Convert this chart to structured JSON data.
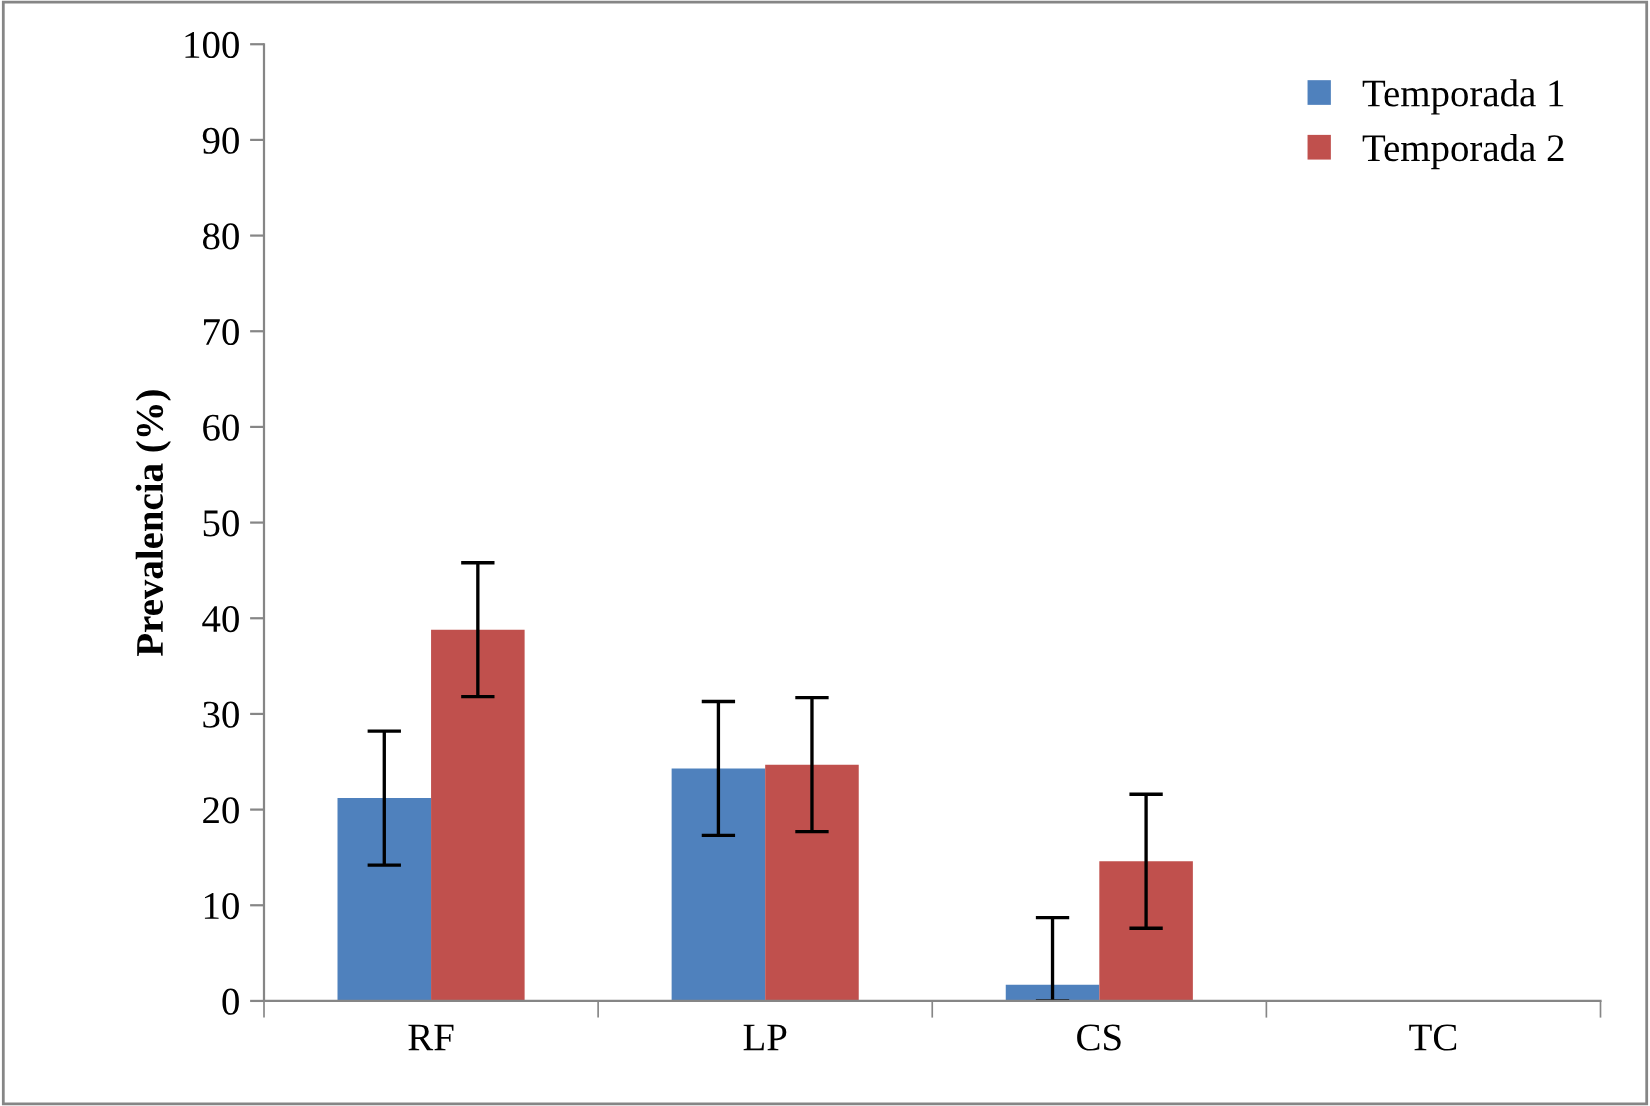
{
  "chart_data": {
    "type": "bar",
    "ylabel": "Prevalencia (%)",
    "categories": [
      "RF",
      "LP",
      "CS",
      "TC"
    ],
    "series": [
      {
        "name": "Temporada 1",
        "color": "#4f81bd",
        "values": [
          21.2,
          24.3,
          1.7,
          0
        ],
        "errors": [
          7,
          7,
          [
            0,
            8.7
          ],
          null
        ]
      },
      {
        "name": "Temporada 2",
        "color": "#c0504d",
        "values": [
          38.8,
          24.7,
          14.6,
          0
        ],
        "errors": [
          7,
          7,
          7,
          null
        ]
      }
    ],
    "ylim": [
      0,
      100
    ],
    "yticks": [
      0,
      10,
      20,
      30,
      40,
      50,
      60,
      70,
      80,
      90,
      100
    ],
    "grid": false,
    "legend": "top right"
  }
}
